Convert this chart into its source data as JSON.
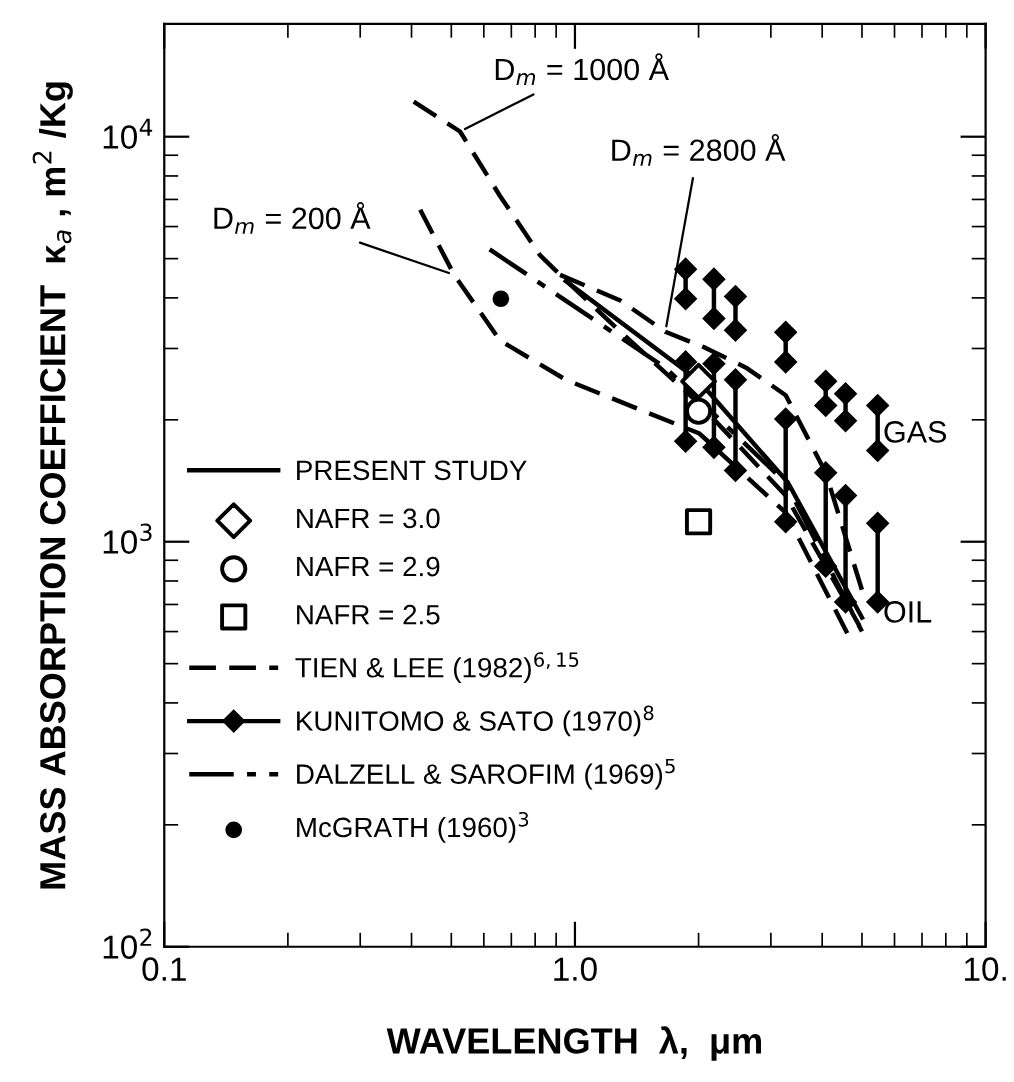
{
  "chart_data": {
    "type": "line",
    "xlabel": "WAVELENGTH  λ,  μm",
    "ylabel": "MASS ABSORPTION COEFFICIENT  κ$_{a}$ , m$^{2}$ /Kg",
    "log": "xy",
    "xlim": [
      0.1,
      10
    ],
    "ylim": [
      100,
      19000
    ],
    "xticks": [
      {
        "value": 0.1,
        "label": "0.1"
      },
      {
        "value": 1,
        "label": "1.0"
      },
      {
        "value": 10,
        "label": "10."
      }
    ],
    "yticks": [
      {
        "value": 100,
        "label": "10$^{2}$"
      },
      {
        "value": 1000,
        "label": "10$^{3}$"
      },
      {
        "value": 10000,
        "label": "10$^{4}$"
      }
    ],
    "grid": false,
    "legend": "left",
    "series": [
      {
        "name": "PRESENT STUDY",
        "color": "#000000",
        "line_style": "solid",
        "marker": "none",
        "x": [
          0.95,
          2.0,
          3.3,
          5.0
        ],
        "values": [
          4400,
          2500,
          1400,
          650
        ]
      },
      {
        "name": "NAFR = 3.0",
        "type": "scatter",
        "color": "#000000",
        "marker": "diamond",
        "x": [
          2.0
        ],
        "values": [
          2490
        ]
      },
      {
        "name": "NAFR = 2.9",
        "type": "scatter",
        "color": "#000000",
        "marker": "circle",
        "x": [
          2.0
        ],
        "values": [
          2100
        ]
      },
      {
        "name": "NAFR = 2.5",
        "type": "scatter",
        "color": "#000000",
        "marker": "square",
        "x": [
          2.0
        ],
        "values": [
          1120
        ]
      },
      {
        "name": "TIEN & LEE (1982)$^{6,15}$",
        "color": "#000000",
        "line_style": "dashed",
        "marker": "none",
        "x": [
          0.405,
          0.525,
          0.657,
          0.822,
          0.92,
          1.29,
          2.0,
          3.26,
          4.93
        ],
        "values": [
          12200,
          10300,
          7140,
          5100,
          4560,
          3300,
          2200,
          1300,
          620
        ]
      },
      {
        "color": "#000000",
        "line_style": "dashed",
        "marker": "none",
        "x": [
          0.92,
          1.29,
          1.66,
          2.08,
          2.61,
          3.26,
          4.08,
          5.0
        ],
        "values": [
          4560,
          3940,
          3300,
          3010,
          2690,
          2300,
          1480,
          760
        ]
      },
      {
        "color": "#000000",
        "line_style": "dashed",
        "marker": "none",
        "x": [
          0.42,
          0.508,
          0.657,
          0.951,
          1.39,
          2.01,
          3.26,
          4.7
        ],
        "values": [
          6600,
          4560,
          3140,
          2510,
          2150,
          1850,
          1180,
          570
        ]
      },
      {
        "name": "KUNITOMO & SATO (1970)$^{8}$",
        "color": "#000000",
        "line_style": "solid",
        "marker": "diamond",
        "x": [
          1.86,
          1.86
        ],
        "values": [
          4710,
          3980
        ]
      },
      {
        "color": "#000000",
        "line_style": "solid",
        "marker": "diamond",
        "x": [
          2.18,
          2.18
        ],
        "values": [
          4450,
          3560
        ]
      },
      {
        "color": "#000000",
        "line_style": "solid",
        "marker": "diamond",
        "x": [
          2.46,
          2.46
        ],
        "values": [
          4030,
          3330
        ]
      },
      {
        "color": "#000000",
        "line_style": "solid",
        "marker": "diamond",
        "x": [
          3.26,
          3.26
        ],
        "values": [
          3290,
          2780
        ]
      },
      {
        "color": "#000000",
        "line_style": "solid",
        "marker": "diamond",
        "x": [
          4.08,
          4.08
        ],
        "values": [
          2490,
          2170
        ]
      },
      {
        "color": "#000000",
        "line_style": "solid",
        "marker": "diamond",
        "x": [
          4.56,
          4.56
        ],
        "values": [
          2320,
          1990
        ]
      },
      {
        "color": "#000000",
        "line_style": "solid",
        "marker": "diamond",
        "x": [
          5.46,
          5.46
        ],
        "values": [
          2170,
          1680
        ]
      },
      {
        "color": "#000000",
        "line_style": "solid",
        "marker": "diamond",
        "x": [
          1.86,
          1.86
        ],
        "values": [
          2780,
          1770
        ]
      },
      {
        "color": "#000000",
        "line_style": "solid",
        "marker": "diamond",
        "x": [
          2.18,
          2.18
        ],
        "values": [
          2750,
          1710
        ]
      },
      {
        "color": "#000000",
        "line_style": "solid",
        "marker": "diamond",
        "x": [
          2.46,
          2.46
        ],
        "values": [
          2510,
          1500
        ]
      },
      {
        "color": "#000000",
        "line_style": "solid",
        "marker": "diamond",
        "x": [
          3.26,
          3.26
        ],
        "values": [
          2010,
          1120
        ]
      },
      {
        "color": "#000000",
        "line_style": "solid",
        "marker": "diamond",
        "x": [
          4.08,
          4.08
        ],
        "values": [
          1480,
          870
        ]
      },
      {
        "color": "#000000",
        "line_style": "solid",
        "marker": "diamond",
        "x": [
          4.56,
          4.56
        ],
        "values": [
          1300,
          710
        ]
      },
      {
        "color": "#000000",
        "line_style": "solid",
        "marker": "diamond",
        "x": [
          5.46,
          5.46
        ],
        "values": [
          1110,
          710
        ]
      },
      {
        "name": "DALZELL & SAROFIM (1969)$^{5}$",
        "color": "#000000",
        "line_style": "dashdot",
        "marker": "none",
        "x": [
          0.62,
          1.66,
          3.26,
          5.0
        ],
        "values": [
          5270,
          2690,
          1400,
          600
        ]
      },
      {
        "name": "McGRATH (1960)$^{3}$",
        "type": "scatter",
        "color": "#000000",
        "marker": "circle",
        "x": [
          0.66
        ],
        "values": [
          3980
        ]
      }
    ],
    "annotations": [
      {
        "text": "D$_{m}$ = 1000 Å",
        "x": 0.525,
        "y": 10300
      },
      {
        "text": "D$_{m}$ = 2800 Å",
        "x": 1.66,
        "y": 3300
      },
      {
        "text": "D$_{m}$ = 200 Å",
        "x": 0.508,
        "y": 4560
      },
      "GAS",
      "OIL"
    ]
  }
}
